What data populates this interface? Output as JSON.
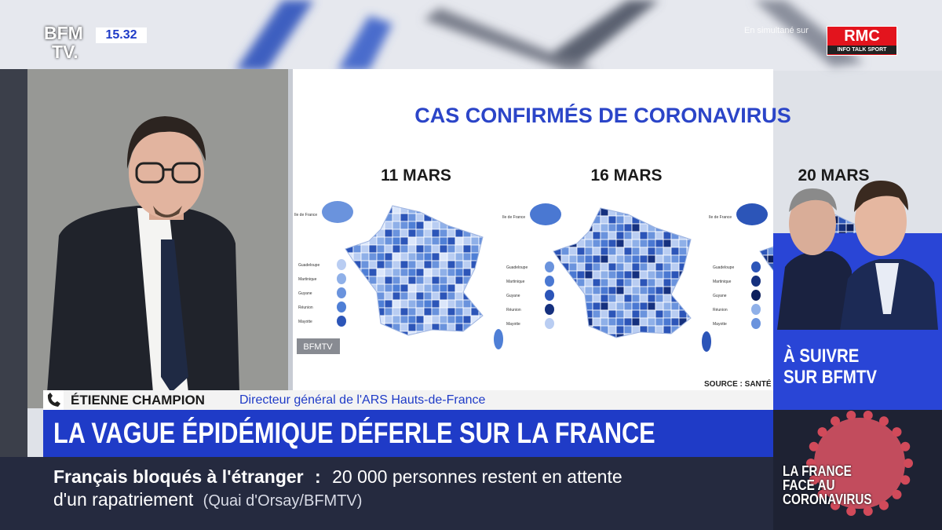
{
  "header": {
    "logo_top": "BFM",
    "logo_bottom": "TV.",
    "time": "15.32",
    "simulcast": "En simultané sur",
    "partner": "RMC",
    "partner_tagline": "INFO TALK SPORT"
  },
  "graphic": {
    "title": "CAS CONFIRMÉS DE CORONAVIRUS",
    "dates": [
      "11 MARS",
      "16 MARS",
      "20 MARS"
    ],
    "inset_labels": [
      "Ile de France",
      "Guadeloupe",
      "Martinique",
      "Guyane",
      "Réunion",
      "Mayotte"
    ],
    "watermark": "BFMTV",
    "source": "SOURCE : SANTÉ"
  },
  "speaker": {
    "name": "ÉTIENNE CHAMPION",
    "role": "Directeur général de l'ARS Hauts-de-France"
  },
  "headline": "LA VAGUE ÉPIDÉMIQUE DÉFERLE SUR LA FRANCE",
  "ticker": {
    "topic": "Français bloqués à l'étranger",
    "separator": ":",
    "text": "20 000 personnes restent en attente",
    "text_2": "d'un rapatriement",
    "source": "(Quai d'Orsay/BFMTV)"
  },
  "promo": {
    "line1": "À SUIVRE",
    "line2": "SUR BFMTV"
  },
  "special": {
    "lines": [
      "LA FRANCE",
      "FACE AU",
      "CORONAVIRUS"
    ]
  }
}
